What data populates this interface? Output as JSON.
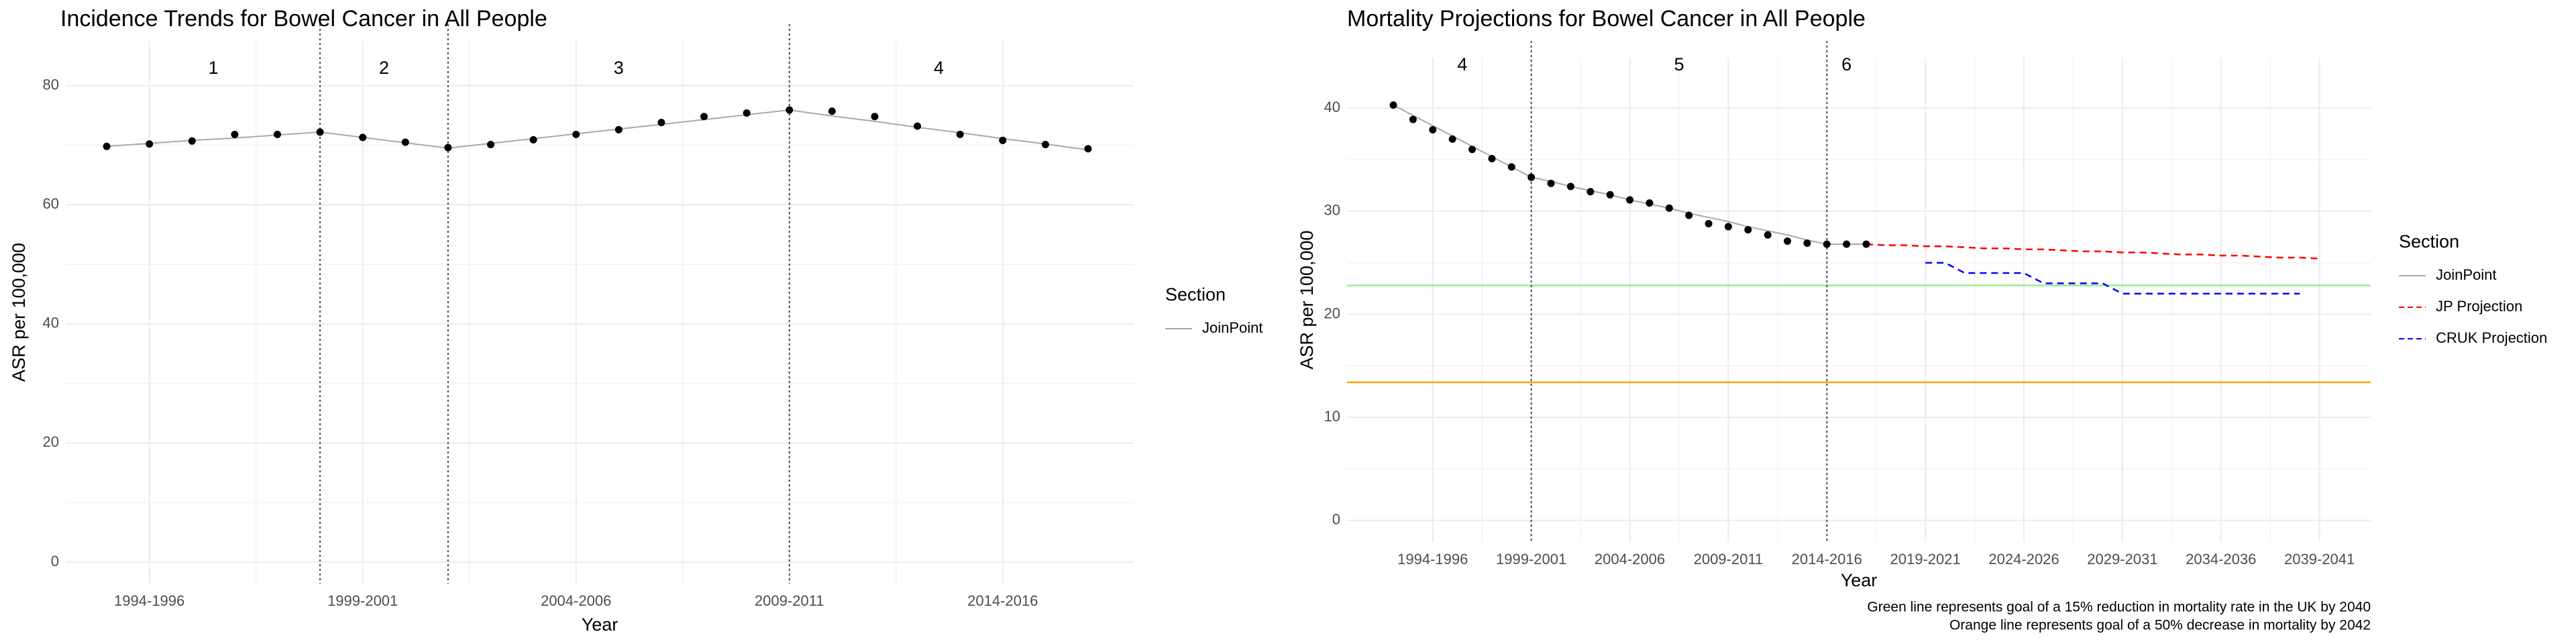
{
  "chart_data": [
    {
      "type": "line",
      "title": "Incidence Trends for Bowel Cancer in All People",
      "x_label": "Year",
      "y_label": "ASR per 100,000",
      "categories": [
        null,
        "1994-1996",
        null,
        null,
        null,
        null,
        "1999-2001",
        null,
        null,
        null,
        null,
        "2004-2006",
        null,
        null,
        null,
        null,
        "2009-2011",
        null,
        null,
        null,
        null,
        "2014-2016",
        null,
        null
      ],
      "points": [
        69.8,
        70.2,
        70.7,
        71.8,
        71.8,
        72.2,
        71.3,
        70.5,
        69.6,
        70.1,
        70.9,
        71.8,
        72.6,
        73.8,
        74.8,
        75.4,
        75.9,
        75.7,
        74.8,
        73.2,
        71.8,
        70.8,
        70.1,
        69.4
      ],
      "points_color": "#000000",
      "series": [
        {
          "name": "JoinPoint",
          "color": "#a9a9a9",
          "dashed": false,
          "values": [
            69.8,
            70.3,
            70.8,
            71.2,
            71.7,
            72.2,
            71.3,
            70.4,
            69.5,
            70.3,
            71.1,
            71.9,
            72.7,
            73.5,
            74.3,
            75.1,
            75.9,
            74.9,
            74.0,
            73.0,
            72.1,
            71.1,
            70.2,
            69.2
          ]
        }
      ],
      "joinpoints": [
        5,
        8,
        16
      ],
      "sections": [
        "1",
        "2",
        "3",
        "4"
      ],
      "legend_title": "Section",
      "xlim": [
        -0.96,
        24.07
      ],
      "ylim": [
        -3.6,
        87.5
      ],
      "yticks": [
        0,
        20,
        40,
        60,
        80
      ],
      "grid": true
    },
    {
      "type": "line",
      "title": "Mortality Projections for Bowel Cancer in All People",
      "x_label": "Year",
      "y_label": "ASR per 100,000",
      "categories": [
        null,
        null,
        "1994-1996",
        null,
        null,
        null,
        null,
        "1999-2001",
        null,
        null,
        null,
        null,
        "2004-2006",
        null,
        null,
        null,
        null,
        "2009-2011",
        null,
        null,
        null,
        null,
        "2014-2016",
        null,
        null,
        null,
        null,
        "2019-2021",
        null,
        null,
        null,
        null,
        "2024-2026",
        null,
        null,
        null,
        null,
        "2029-2031",
        null,
        null,
        null,
        null,
        "2034-2036",
        null,
        null,
        null,
        null,
        "2039-2041"
      ],
      "points": [
        40.3,
        38.9,
        37.9,
        37.0,
        36.0,
        35.1,
        34.3,
        33.3,
        32.7,
        32.4,
        31.9,
        31.6,
        31.1,
        30.8,
        30.3,
        29.6,
        28.8,
        28.5,
        28.2,
        27.7,
        27.1,
        26.9,
        26.8,
        26.8,
        26.8
      ],
      "points_color": "#000000",
      "series": [
        {
          "name": "JoinPoint",
          "color": "#a9a9a9",
          "dashed": false,
          "values": [
            40.3,
            39.3,
            38.3,
            37.3,
            36.3,
            35.3,
            34.3,
            33.3,
            32.9,
            32.4,
            32.0,
            31.6,
            31.1,
            30.7,
            30.3,
            29.8,
            29.4,
            29.0,
            28.5,
            28.1,
            27.7,
            27.2,
            26.8,
            26.8,
            26.8,
            null,
            null,
            null,
            null,
            null,
            null,
            null,
            null,
            null,
            null,
            null,
            null,
            null,
            null,
            null,
            null,
            null,
            null,
            null,
            null,
            null,
            null,
            null
          ]
        },
        {
          "name": "JP Projection",
          "color": "#ff0000",
          "dashed": true,
          "values": [
            null,
            null,
            null,
            null,
            null,
            null,
            null,
            null,
            null,
            null,
            null,
            null,
            null,
            null,
            null,
            null,
            null,
            null,
            null,
            null,
            null,
            null,
            null,
            null,
            26.8,
            26.7,
            26.7,
            26.6,
            26.6,
            26.5,
            26.4,
            26.4,
            26.3,
            26.3,
            26.2,
            26.1,
            26.1,
            26.0,
            26.0,
            25.9,
            25.8,
            25.8,
            25.7,
            25.7,
            25.6,
            25.5,
            25.5,
            25.4
          ]
        },
        {
          "name": "CRUK Projection",
          "color": "#0000ff",
          "dashed": true,
          "values": [
            null,
            null,
            null,
            null,
            null,
            null,
            null,
            null,
            null,
            null,
            null,
            null,
            null,
            null,
            null,
            null,
            null,
            null,
            null,
            null,
            null,
            null,
            null,
            null,
            null,
            null,
            null,
            25,
            25,
            24,
            24,
            24,
            24,
            23,
            23,
            23,
            23,
            22,
            22,
            22,
            22,
            22,
            22,
            22,
            22,
            22,
            22,
            null
          ]
        }
      ],
      "reference_lines": [
        {
          "value": 22.8,
          "color": "#90ee90"
        },
        {
          "value": 13.4,
          "color": "#ffa500"
        }
      ],
      "joinpoints": [
        7,
        22
      ],
      "sections": [
        "4",
        "5",
        "6"
      ],
      "legend_title": "Section",
      "notes": [
        "Green line represents goal of a 15% reduction in mortality rate in the UK by 2040",
        "Orange line represents goal of a 50% decrease in mortality by 2042"
      ],
      "xlim": [
        -2.35,
        49.6
      ],
      "ylim": [
        -2.1,
        44.9
      ],
      "yticks": [
        0,
        10,
        20,
        30,
        40
      ],
      "grid": true
    }
  ]
}
